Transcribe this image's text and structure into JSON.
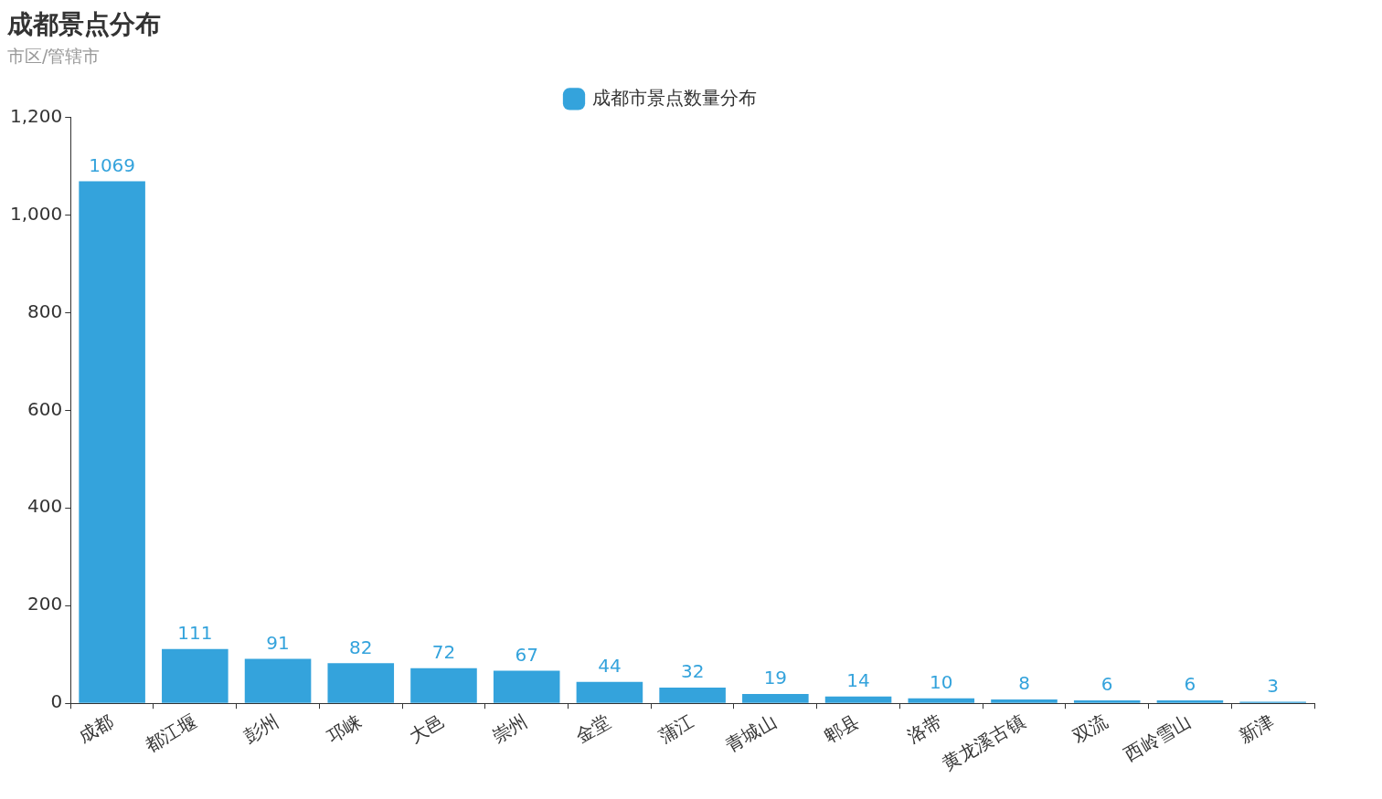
{
  "chart_data": {
    "type": "bar",
    "title": "成都景点分布",
    "subtitle": "市区/管辖市",
    "categories": [
      "成都",
      "都江堰",
      "彭州",
      "邛崃",
      "大邑",
      "崇州",
      "金堂",
      "蒲江",
      "青城山",
      "郫县",
      "洛带",
      "黄龙溪古镇",
      "双流",
      "西岭雪山",
      "新津"
    ],
    "series": [
      {
        "name": "成都市景点数量分布",
        "color": "#34a3dc",
        "values": [
          1069,
          111,
          91,
          82,
          72,
          67,
          44,
          32,
          19,
          14,
          10,
          8,
          6,
          6,
          3
        ]
      }
    ],
    "ylim": [
      0,
      1200
    ],
    "yticks": [
      0,
      {
        "value": 200,
        "label": "200"
      },
      400,
      600,
      800,
      {
        "value": 1000,
        "label": "1,000"
      },
      {
        "value": 1200,
        "label": "1,200"
      }
    ],
    "data_labels": true,
    "legend": "top",
    "grid": false
  }
}
